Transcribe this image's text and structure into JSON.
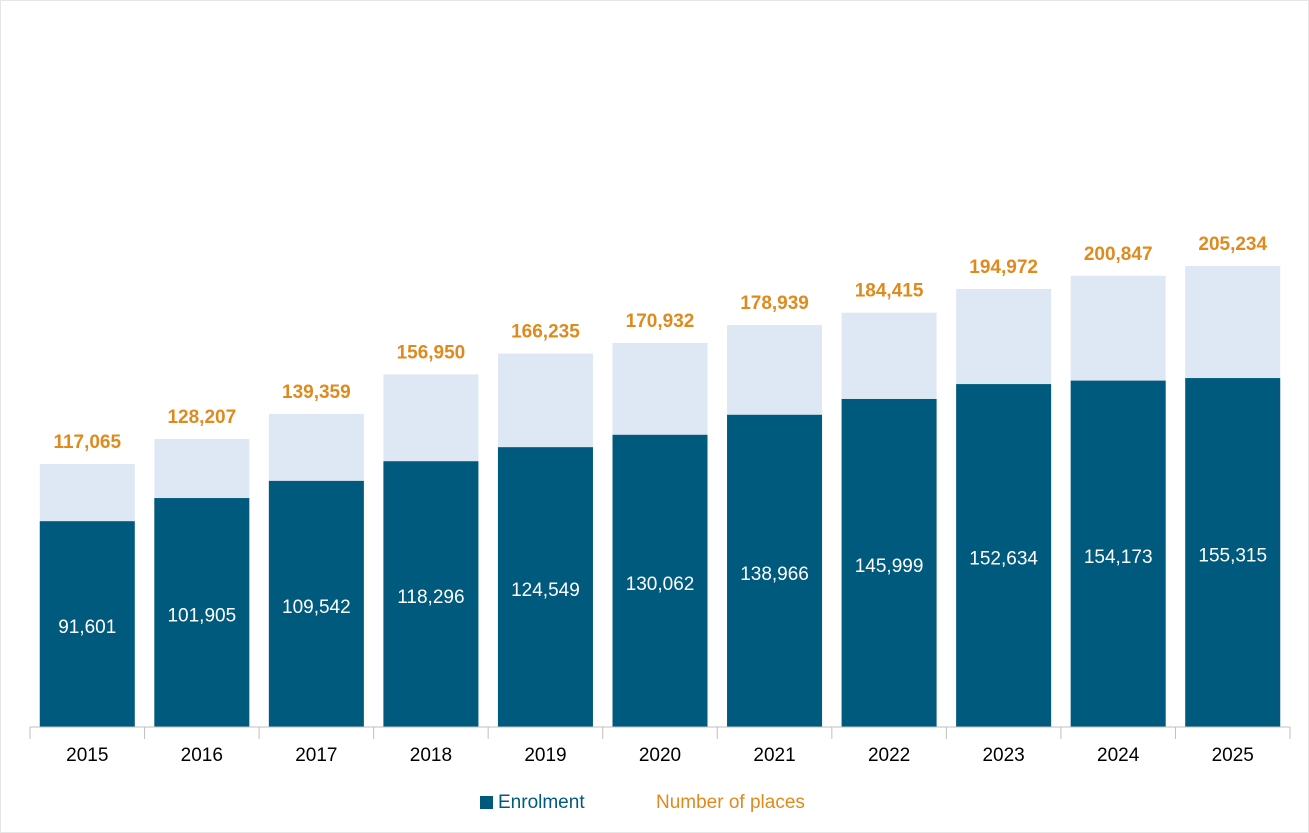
{
  "chart_data": {
    "type": "bar",
    "categories": [
      "2015",
      "2016",
      "2017",
      "2018",
      "2019",
      "2020",
      "2021",
      "2022",
      "2023",
      "2024",
      "2025"
    ],
    "series": [
      {
        "name": "Enrolment",
        "color": "#005a7d",
        "values": [
          91601,
          101905,
          109542,
          118296,
          124549,
          130062,
          138966,
          145999,
          152634,
          154173,
          155315
        ],
        "value_labels": [
          "91,601",
          "101,905",
          "109,542",
          "118,296",
          "124,549",
          "130,062",
          "138,966",
          "145,999",
          "152,634",
          "154,173",
          "155,315"
        ]
      },
      {
        "name": "Number of places",
        "color": "#dde8f4",
        "label_color": "#e08a1e",
        "values": [
          117065,
          128207,
          139359,
          156950,
          166235,
          170932,
          178939,
          184415,
          194972,
          200847,
          205234
        ],
        "value_labels": [
          "117,065",
          "128,207",
          "139,359",
          "156,950",
          "166,235",
          "170,932",
          "178,939",
          "184,415",
          "194,972",
          "200,847",
          "205,234"
        ]
      }
    ],
    "ylim": [
      0,
      300000
    ],
    "legend": "bottom"
  }
}
